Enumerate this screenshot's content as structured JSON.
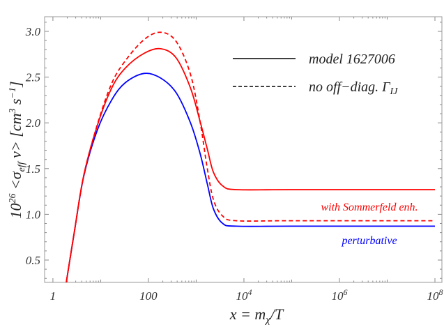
{
  "chart_data": {
    "type": "line",
    "xscale": "log",
    "xlim": [
      0.67,
      140000000.0
    ],
    "ylim": [
      0.256,
      3.16
    ],
    "grid": false,
    "xlabel": {
      "main": "x = m",
      "sub": "χ",
      "tail": "/T"
    },
    "ylabel": {
      "base": "10",
      "exp": "26",
      "a": " <σ",
      "sub": "eff",
      "b": " v>  [cm",
      "exp2": "3",
      "c": " s",
      "exp3": "−1",
      "d": "]"
    },
    "x_ticks": [
      {
        "value": 1,
        "base": "1",
        "exp": ""
      },
      {
        "value": 100,
        "base": "100",
        "exp": ""
      },
      {
        "value": 10000,
        "base": "10",
        "exp": "4"
      },
      {
        "value": 1000000,
        "base": "10",
        "exp": "6"
      },
      {
        "value": 100000000,
        "base": "10",
        "exp": "8"
      }
    ],
    "y_ticks": [
      {
        "value": 0.5,
        "label": "0.5"
      },
      {
        "value": 1.0,
        "label": "1.0"
      },
      {
        "value": 1.5,
        "label": "1.5"
      },
      {
        "value": 2.0,
        "label": "2.0"
      },
      {
        "value": 2.5,
        "label": "2.5"
      },
      {
        "value": 3.0,
        "label": "3.0"
      }
    ],
    "x": [
      1.95,
      2.8,
      4.4,
      8.5,
      17,
      33,
      81,
      180,
      380,
      760,
      1200,
      1700,
      2300,
      3600,
      7000,
      100000,
      100000000
    ],
    "series": [
      {
        "key": "perturbative",
        "color": "#0000ff",
        "dash": "solid",
        "values": [
          0.29,
          0.8,
          1.41,
          1.92,
          2.25,
          2.44,
          2.54,
          2.49,
          2.33,
          2.0,
          1.67,
          1.34,
          1.06,
          0.9,
          0.87,
          0.87,
          0.87
        ]
      },
      {
        "key": "sommerfeld",
        "color": "#ff0000",
        "dash": "solid",
        "values": [
          0.29,
          0.8,
          1.42,
          1.97,
          2.38,
          2.6,
          2.76,
          2.81,
          2.71,
          2.38,
          2.02,
          1.72,
          1.46,
          1.31,
          1.27,
          1.27,
          1.27
        ]
      },
      {
        "key": "sommerfeld-no-offdiag",
        "color": "#ff0000",
        "dash": "dashed",
        "values": [
          0.29,
          0.8,
          1.42,
          1.98,
          2.43,
          2.68,
          2.91,
          2.99,
          2.89,
          2.53,
          2.02,
          1.51,
          1.16,
          0.98,
          0.93,
          0.93,
          0.93
        ]
      }
    ],
    "legend": {
      "placement": "top-right",
      "entries": [
        {
          "style": "solid",
          "label": "model 1627006"
        },
        {
          "style": "dashed",
          "label": "no off−diag. Γ",
          "sub": "IJ"
        }
      ]
    },
    "annotations": [
      {
        "text": "with Sommerfeld enh.",
        "color": "#ff0000"
      },
      {
        "text": "perturbative",
        "color": "#0000ff"
      }
    ]
  }
}
